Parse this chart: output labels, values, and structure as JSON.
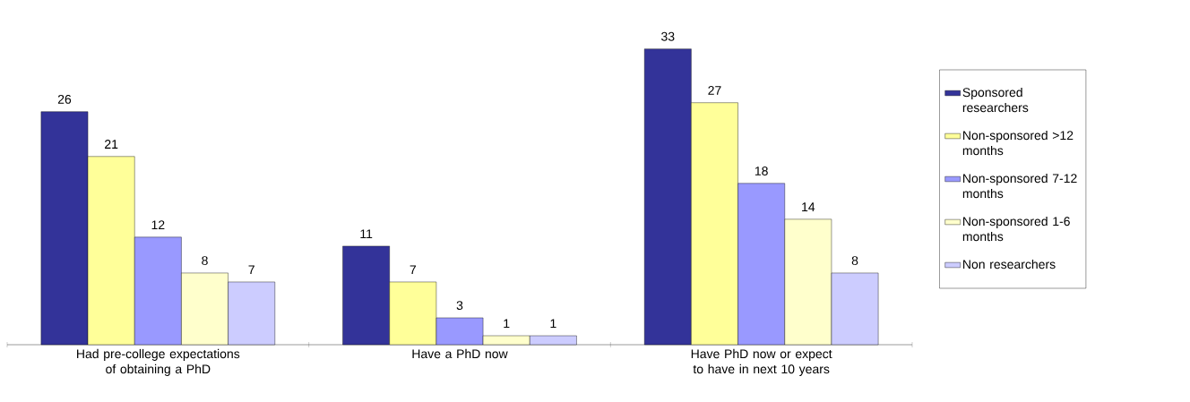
{
  "chart_data": {
    "type": "bar",
    "categories": [
      "Had pre-college expectations of obtaining a PhD",
      "Have a PhD now",
      "Have PhD now or expect to have in next 10 years"
    ],
    "series": [
      {
        "name": "Sponsored researchers",
        "color": "#333399",
        "values": [
          26,
          11,
          33
        ]
      },
      {
        "name": "Non-sponsored >12 months",
        "color": "#ffff99",
        "values": [
          21,
          7,
          27
        ]
      },
      {
        "name": "Non-sponsored 7-12 months",
        "color": "#9999ff",
        "values": [
          12,
          3,
          18
        ]
      },
      {
        "name": "Non-sponsored 1-6 months",
        "color": "#ffffcc",
        "values": [
          8,
          1,
          14
        ]
      },
      {
        "name": "Non researchers",
        "color": "#ccccff",
        "values": [
          7,
          1,
          8
        ]
      }
    ],
    "data_labels": true,
    "legend": "right"
  }
}
